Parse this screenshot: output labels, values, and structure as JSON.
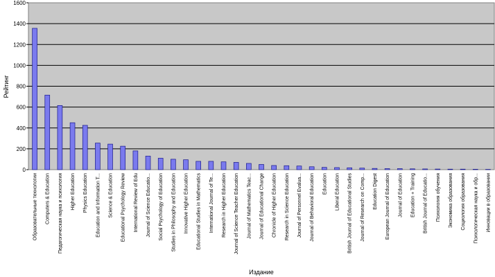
{
  "chart_data": {
    "type": "bar",
    "title": "",
    "xlabel": "Издание",
    "ylabel": "Рейтинг",
    "ylim": [
      0,
      1600
    ],
    "yticks": [
      0,
      200,
      400,
      600,
      800,
      1000,
      1200,
      1400,
      1600
    ],
    "grid": true,
    "legend": "none",
    "colors": {
      "bar_fill": "#7a7aee",
      "bar_stroke": "#1a1a8a",
      "plot_bg": "#c8c8c8",
      "gridline": "#000000"
    },
    "categories": [
      "Образовательные технологии",
      "Computers & Education",
      "Педагогическая наука и психология",
      "Higher Education",
      "Physics Education",
      "Education and Information T...",
      "Science & Education",
      "Educational Psychology Review",
      "International Review of Edu",
      "Journal of Science Educatio...",
      "Social Psychology of Education",
      "Studies in Philosophy and Education",
      "Innovative Higher Education",
      "Educational Studies in Mathematics",
      "International Journal of Te...",
      "Research in Higher Education",
      "Journal of Science Teacher Education",
      "Journal of Mathematics Teac...",
      "Journal of Educational Change",
      "Chronicle of Higher Education",
      "Research in Science Education",
      "Journal of Personnel Evalua...",
      "Journal of Behavioral Education",
      "Education",
      "Liberal Education",
      "British Journal of Educational Studies",
      "Journal of Research on Comp...",
      "Education Digest",
      "European Journal of Education",
      "Journal of Education",
      "Education + Training",
      "British Journal of Educatio...",
      "Психология обучения",
      "Экономика образования",
      "Социология образования",
      "Психологическая наука и обр...",
      "Инновации в образовании"
    ],
    "values": [
      1355,
      715,
      615,
      450,
      425,
      255,
      245,
      225,
      180,
      130,
      110,
      100,
      95,
      80,
      80,
      75,
      70,
      60,
      50,
      40,
      38,
      35,
      28,
      22,
      20,
      18,
      15,
      12,
      10,
      10,
      8,
      7,
      6,
      5,
      5,
      4,
      3
    ]
  }
}
